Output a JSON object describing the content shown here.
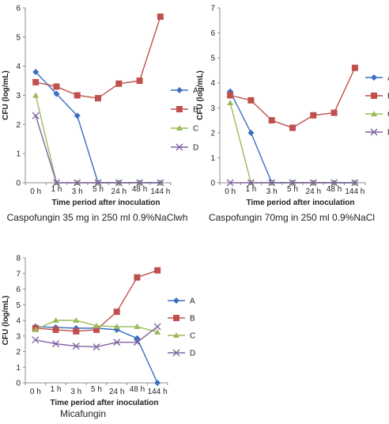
{
  "chart_data": [
    {
      "type": "line",
      "caption": "Caspofungin 35 mg in 250 ml 0.9%NaClwh",
      "xlabel": "Time period after inoculation",
      "ylabel": "CFU (log/mL)",
      "ylim": [
        0,
        6
      ],
      "yticks": [
        0,
        1,
        2,
        3,
        4,
        5,
        6
      ],
      "categories": [
        "0 h",
        "1 h",
        "3 h",
        "5 h",
        "24 h",
        "48 h",
        "144 h"
      ],
      "legend_position": "right",
      "series": [
        {
          "name": "A",
          "color": "#3a6fc1",
          "marker": "diamond",
          "values": [
            3.8,
            3.05,
            2.3,
            0,
            0,
            0,
            0
          ]
        },
        {
          "name": "B",
          "color": "#c0504d",
          "marker": "square",
          "values": [
            3.45,
            3.3,
            3.0,
            2.9,
            3.4,
            3.5,
            5.7
          ]
        },
        {
          "name": "C",
          "color": "#9bbb59",
          "marker": "triangle",
          "values": [
            3.0,
            0,
            0,
            0,
            0,
            0,
            0
          ]
        },
        {
          "name": "D",
          "color": "#7f63a2",
          "marker": "x",
          "values": [
            2.3,
            0,
            0,
            0,
            0,
            0,
            0
          ]
        }
      ]
    },
    {
      "type": "line",
      "caption": "Caspofungin 70mg in 250 ml 0.9%NaCl",
      "xlabel": "Time period after inoculation",
      "ylabel": "CFU (log/mL)",
      "ylim": [
        0,
        7
      ],
      "yticks": [
        0,
        1,
        2,
        3,
        4,
        5,
        6,
        7
      ],
      "categories": [
        "0 h",
        "1 h",
        "3 h",
        "5 h",
        "24 h",
        "48 h",
        "144 h"
      ],
      "legend_position": "right",
      "series": [
        {
          "name": "A",
          "color": "#3a6fc1",
          "marker": "diamond",
          "values": [
            3.65,
            2.0,
            0,
            0,
            0,
            0,
            0
          ]
        },
        {
          "name": "B",
          "color": "#c0504d",
          "marker": "square",
          "values": [
            3.5,
            3.3,
            2.5,
            2.2,
            2.7,
            2.8,
            4.6
          ]
        },
        {
          "name": "C",
          "color": "#9bbb59",
          "marker": "triangle",
          "values": [
            3.2,
            0,
            0,
            0,
            0,
            0,
            0
          ]
        },
        {
          "name": "D",
          "color": "#7f63a2",
          "marker": "x",
          "values": [
            0,
            0,
            0,
            0,
            0,
            0,
            0
          ]
        }
      ]
    },
    {
      "type": "line",
      "caption": "Micafungin",
      "xlabel": "Time period after inoculation",
      "ylabel": "CFU (log/mL)",
      "ylim": [
        0,
        8
      ],
      "yticks": [
        0,
        1,
        2,
        3,
        4,
        5,
        6,
        7,
        8
      ],
      "categories": [
        "0 h",
        "1 h",
        "3 h",
        "5 h",
        "24 h",
        "48 h",
        "144 h"
      ],
      "legend_position": "right",
      "series": [
        {
          "name": "A",
          "color": "#3a6fc1",
          "marker": "diamond",
          "values": [
            3.6,
            3.55,
            3.5,
            3.5,
            3.4,
            2.85,
            0
          ]
        },
        {
          "name": "B",
          "color": "#c0504d",
          "marker": "square",
          "values": [
            3.5,
            3.4,
            3.3,
            3.4,
            4.55,
            6.75,
            7.2
          ]
        },
        {
          "name": "C",
          "color": "#9bbb59",
          "marker": "triangle",
          "values": [
            3.4,
            4.0,
            4.0,
            3.65,
            3.6,
            3.6,
            3.25
          ]
        },
        {
          "name": "D",
          "color": "#7f63a2",
          "marker": "x",
          "values": [
            2.75,
            2.5,
            2.35,
            2.3,
            2.6,
            2.6,
            3.6
          ]
        }
      ]
    }
  ]
}
